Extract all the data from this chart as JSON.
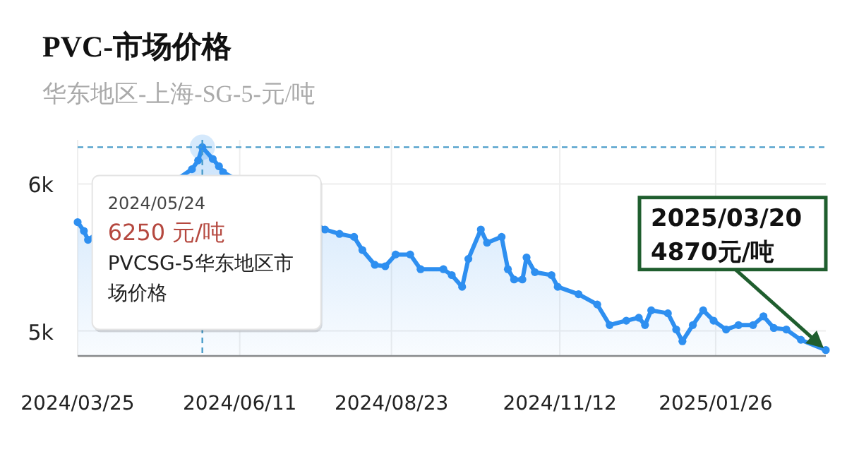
{
  "chart_data": {
    "type": "area",
    "title": "PVC-市场价格",
    "subtitle": "华东地区-上海-SG-5-元/吨",
    "x": [
      "2024-03-25",
      "2024-03-28",
      "2024-03-30",
      "2024-05-19",
      "2024-05-22",
      "2024-05-24",
      "2024-05-29",
      "2024-06-01",
      "2024-06-03",
      "2024-07-22",
      "2024-07-29",
      "2024-08-05",
      "2024-08-09",
      "2024-08-15",
      "2024-08-20",
      "2024-08-25",
      "2024-09-01",
      "2024-09-06",
      "2024-09-17",
      "2024-09-21",
      "2024-09-26",
      "2024-09-29",
      "2024-10-05",
      "2024-10-08",
      "2024-10-15",
      "2024-10-18",
      "2024-10-21",
      "2024-10-25",
      "2024-10-27",
      "2024-10-31",
      "2024-11-08",
      "2024-11-11",
      "2024-11-21",
      "2024-11-30",
      "2024-12-06",
      "2024-12-14",
      "2024-12-20",
      "2024-12-23",
      "2024-12-26",
      "2025-01-03",
      "2025-01-07",
      "2025-01-10",
      "2025-01-15",
      "2025-01-20",
      "2025-01-25",
      "2025-01-31",
      "2025-02-06",
      "2025-02-13",
      "2025-02-18",
      "2025-02-23",
      "2025-03-01",
      "2025-03-08",
      "2025-03-20"
    ],
    "series": [
      {
        "color": "#2e8ff0",
        "values": [
          5740,
          5680,
          5620,
          6100,
          6160,
          6250,
          6170,
          6120,
          6080,
          5690,
          5660,
          5640,
          5550,
          5450,
          5440,
          5520,
          5520,
          5420,
          5420,
          5380,
          5300,
          5490,
          5690,
          5600,
          5640,
          5420,
          5350,
          5350,
          5500,
          5400,
          5380,
          5300,
          5250,
          5180,
          5040,
          5070,
          5090,
          5040,
          5140,
          5120,
          5010,
          4930,
          5040,
          5140,
          5070,
          5010,
          5040,
          5040,
          5100,
          5020,
          5010,
          4940,
          4870
        ]
      }
    ],
    "xlim": [
      "2024-03-25",
      "2025-03-20"
    ],
    "xticks": [
      {
        "value": "2024-03-25",
        "label": "2024/03/25"
      },
      {
        "value": "2024-06-11",
        "label": "2024/06/11"
      },
      {
        "value": "2024-08-23",
        "label": "2024/08/23"
      },
      {
        "value": "2024-11-12",
        "label": "2024/11/12"
      },
      {
        "value": "2025-01-26",
        "label": "2025/01/26"
      }
    ],
    "ylim": [
      4830,
      6300
    ],
    "yticks": [
      {
        "value": 5000,
        "label": "5k"
      },
      {
        "value": 6000,
        "label": "6k"
      }
    ],
    "grid": true,
    "marker": "circle",
    "ref_lines": [
      {
        "axis": "y",
        "value": 6250,
        "color": "#4a9cc9",
        "line_style": "dashed"
      },
      {
        "axis": "x",
        "value": "2024-05-24",
        "color": "#4a9cc9",
        "line_style": "dashed"
      }
    ],
    "annotations": [
      {
        "text": "2024/05/24\n6250 元/吨\nPVCSG-5华东地区市场价格",
        "x": "2024-05-24",
        "y": 6250
      },
      {
        "text": "2025/03/20\n4870元/吨",
        "x": "2025-03-20",
        "y": 4870
      }
    ]
  }
}
